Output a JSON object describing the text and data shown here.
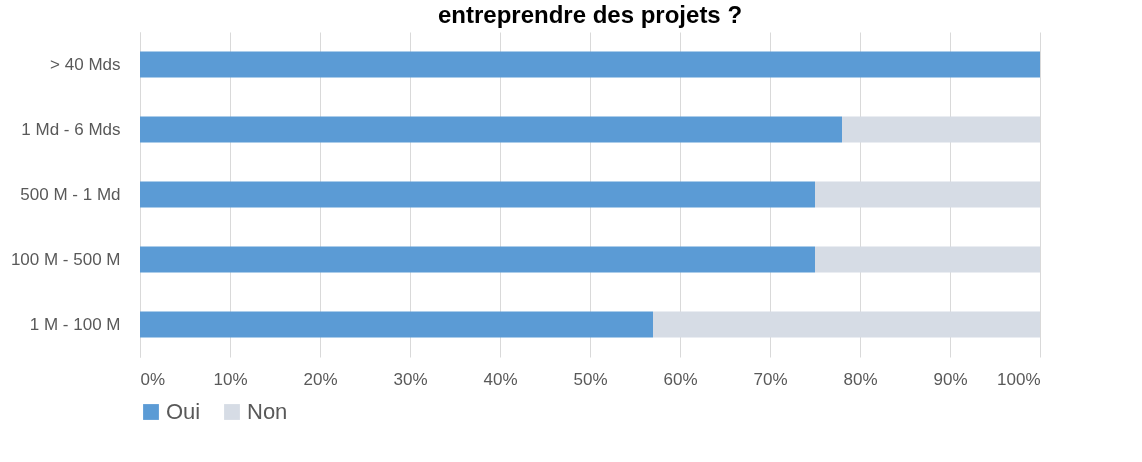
{
  "chart_data": {
    "type": "bar",
    "orientation": "horizontal",
    "stacked": true,
    "title": "entreprendre des projets ?",
    "categories": [
      "> 40 Mds",
      "1 Md - 6 Mds",
      "500 M - 1 Md",
      "100 M - 500 M",
      "1 M - 100 M"
    ],
    "series": [
      {
        "name": "Oui",
        "color": "#5b9bd5",
        "values": [
          100,
          78,
          75,
          75,
          57
        ]
      },
      {
        "name": "Non",
        "color": "#d6dce5",
        "values": [
          0,
          22,
          25,
          25,
          43
        ]
      }
    ],
    "xlim": [
      0,
      100
    ],
    "xticks": [
      {
        "value": 0,
        "label": "0%"
      },
      {
        "value": 10,
        "label": "10%"
      },
      {
        "value": 20,
        "label": "20%"
      },
      {
        "value": 30,
        "label": "30%"
      },
      {
        "value": 40,
        "label": "40%"
      },
      {
        "value": 50,
        "label": "50%"
      },
      {
        "value": 60,
        "label": "60%"
      },
      {
        "value": 70,
        "label": "70%"
      },
      {
        "value": 80,
        "label": "80%"
      },
      {
        "value": 90,
        "label": "90%"
      },
      {
        "value": 100,
        "label": "100%"
      }
    ],
    "grid": "x",
    "legend": "bottom"
  }
}
